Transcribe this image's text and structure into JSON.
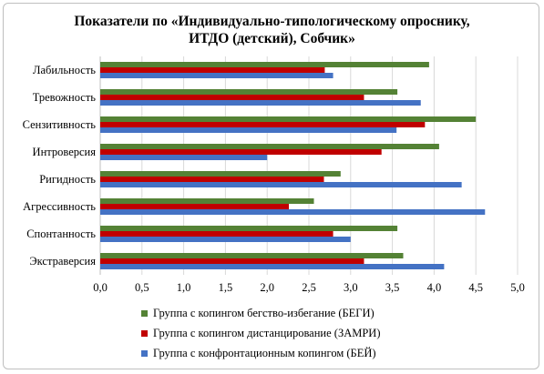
{
  "chart_data": {
    "type": "bar",
    "orientation": "horizontal",
    "title_line1": "Показатели по «Индивидуально-типологическому опроснику,",
    "title_line2": "ИТДО (детский), Собчик»",
    "categories": [
      "Лабильность",
      "Тревожность",
      "Сензитивность",
      "Интроверсия",
      "Ригидность",
      "Агрессивность",
      "Спонтанность",
      "Экстраверсия"
    ],
    "series": [
      {
        "name": "Группа с копингом бегство-избегание (БЕГИ)",
        "color": "#548235",
        "values": [
          3.94,
          3.56,
          4.5,
          4.06,
          2.88,
          2.56,
          3.56,
          3.63
        ]
      },
      {
        "name": "Группа с копингом дистанцирование (ЗАМРИ)",
        "color": "#c00000",
        "values": [
          2.69,
          3.16,
          3.89,
          3.37,
          2.68,
          2.26,
          2.79,
          3.16
        ]
      },
      {
        "name": "Группа с конфронтационным копингом (БЕЙ)",
        "color": "#4472c4",
        "values": [
          2.79,
          3.84,
          3.55,
          2.0,
          4.33,
          4.61,
          3.0,
          4.12
        ]
      }
    ],
    "xlim": [
      0,
      5
    ],
    "xticks": [
      "0,0",
      "0,5",
      "1,0",
      "1,5",
      "2,0",
      "2,5",
      "3,0",
      "3,5",
      "4,0",
      "4,5",
      "5,0"
    ],
    "grid": true,
    "legend_position": "bottom"
  }
}
